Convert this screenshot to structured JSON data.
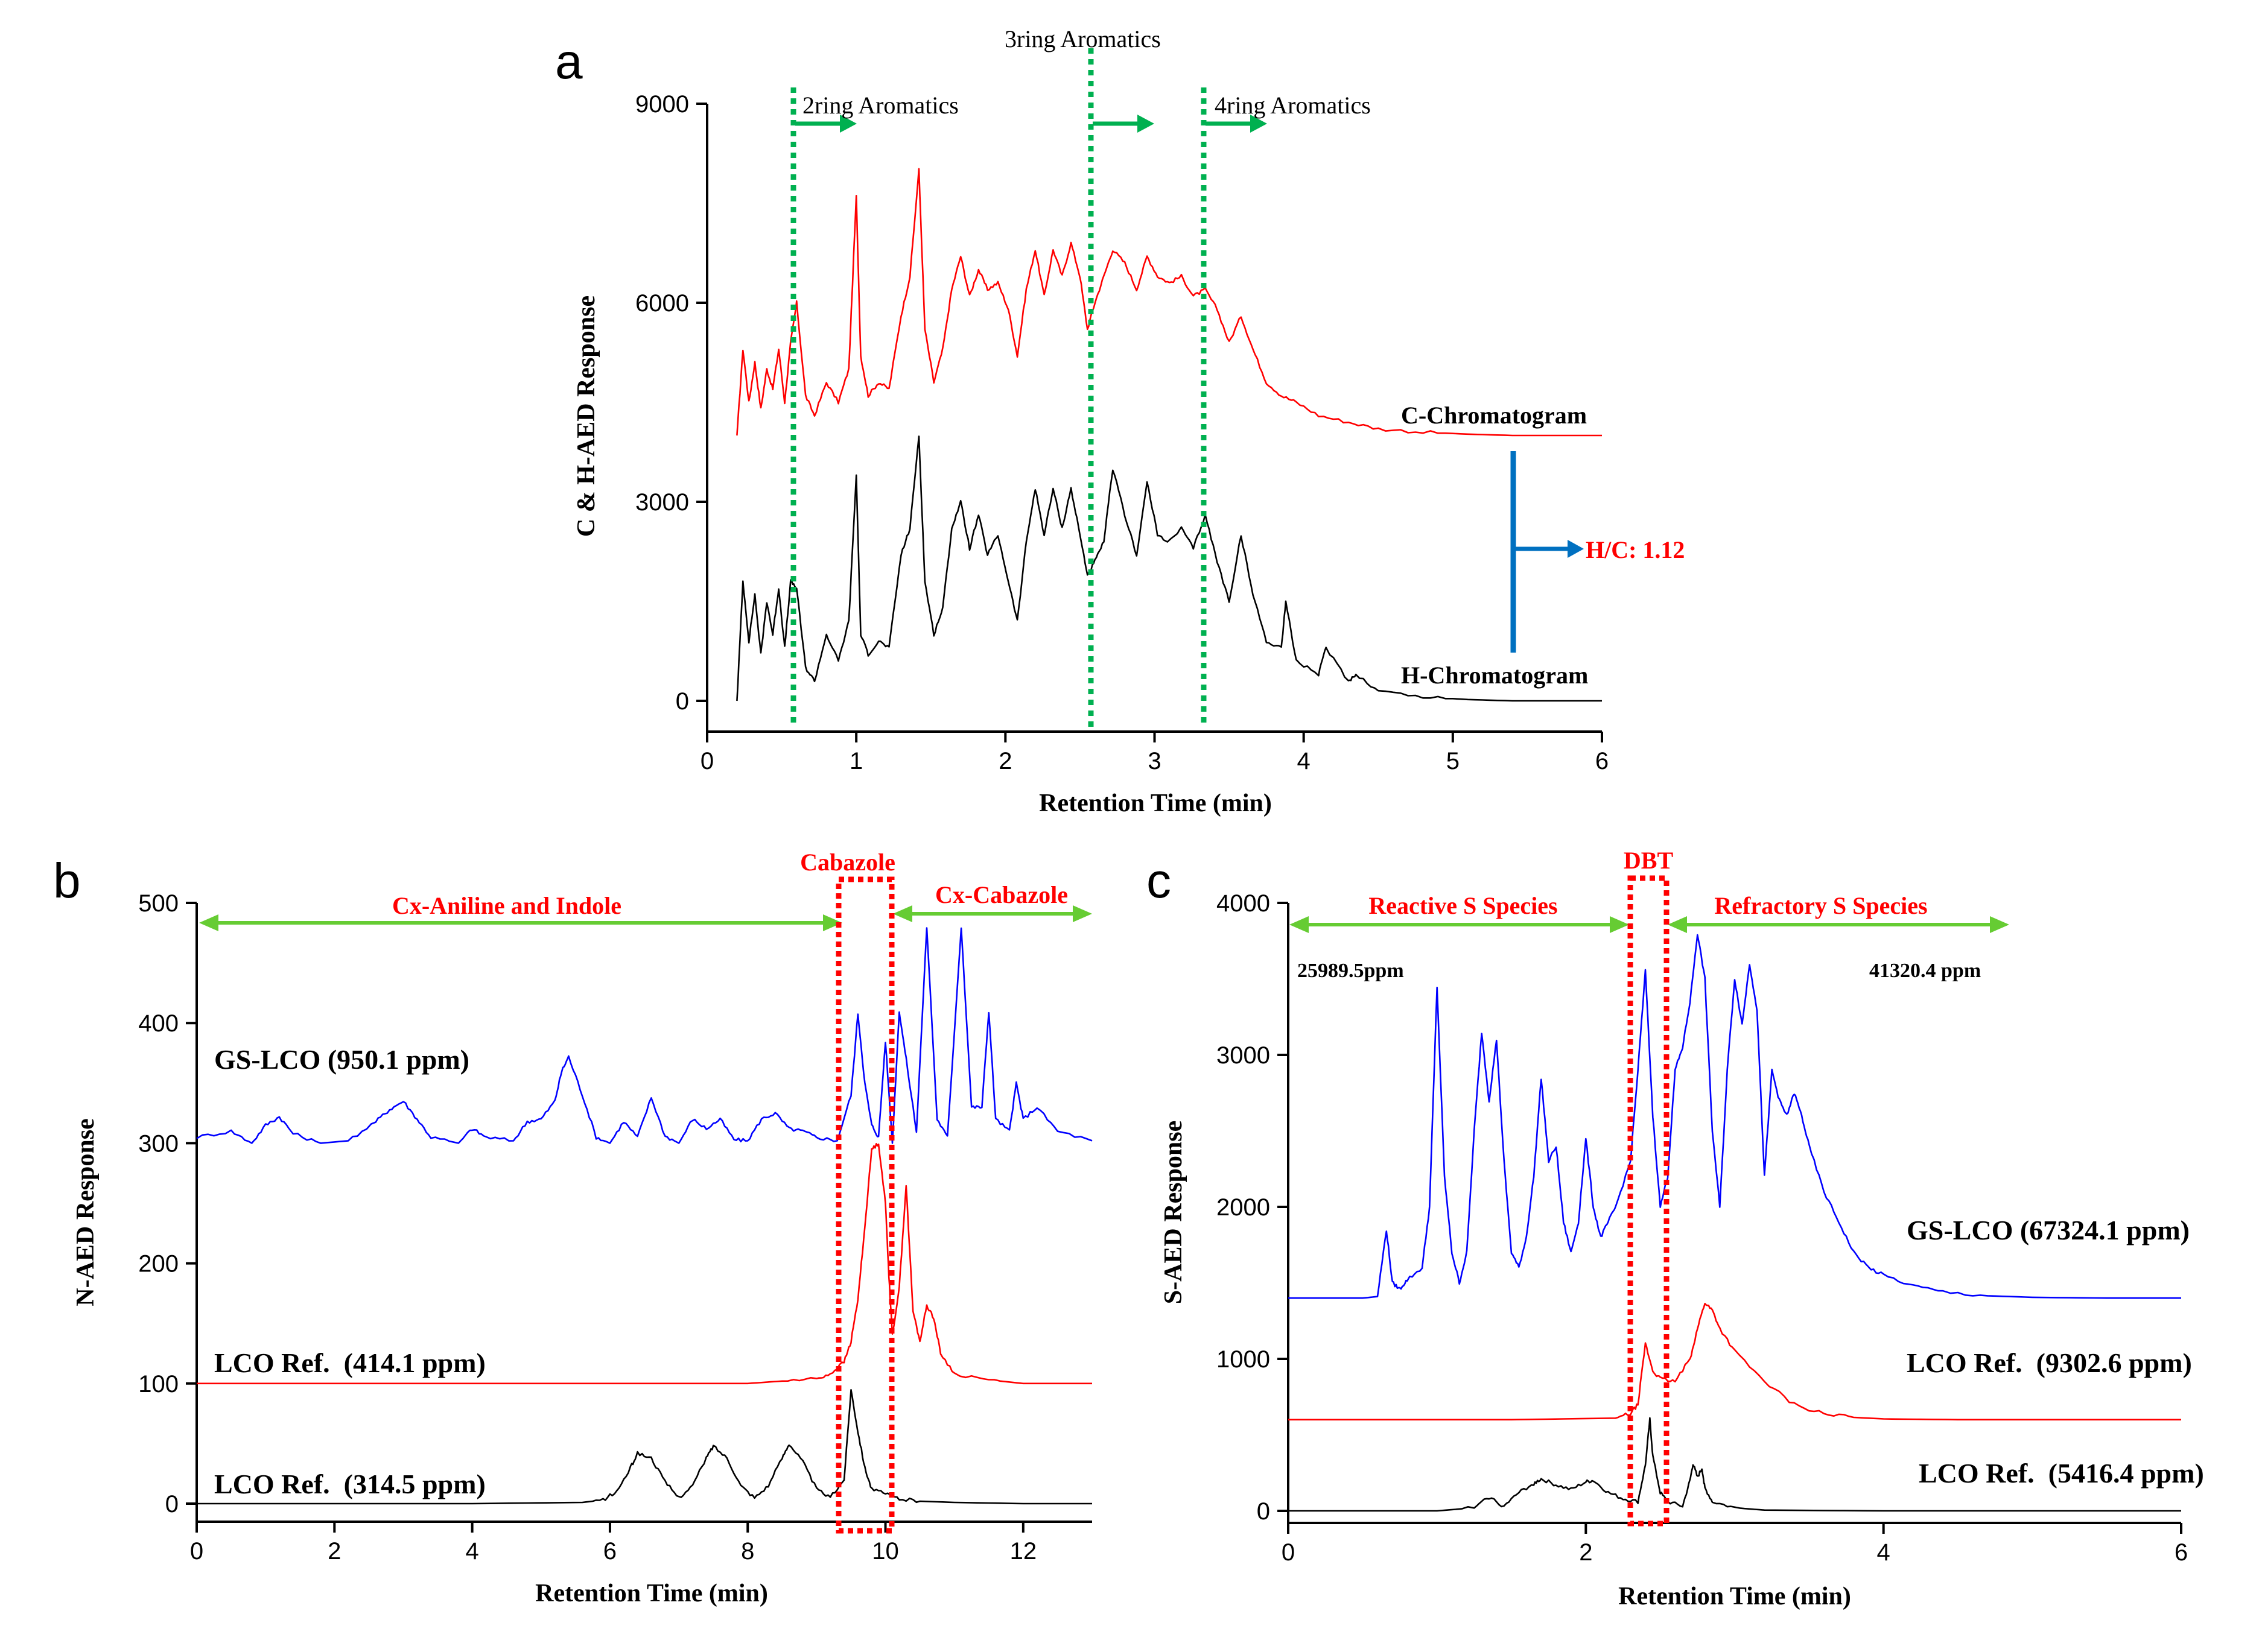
{
  "panels": {
    "a": {
      "letter": "a"
    },
    "b": {
      "letter": "b"
    },
    "c": {
      "letter": "c"
    }
  },
  "chart_data": [
    {
      "id": "a",
      "type": "line",
      "xlabel": "Retention Time (min)",
      "ylabel": "C & H-AED Response",
      "xlim": [
        0,
        6
      ],
      "ylim": [
        0,
        9000
      ],
      "xticks": [
        0,
        1,
        2,
        3,
        4,
        5,
        6
      ],
      "yticks": [
        0,
        3000,
        6000,
        9000
      ],
      "series": [
        {
          "name": "C-Chromatogram",
          "color": "#ff0000",
          "baseline": 4000,
          "x": [
            0.2,
            0.24,
            0.28,
            0.32,
            0.36,
            0.4,
            0.44,
            0.48,
            0.52,
            0.56,
            0.6,
            0.66,
            0.72,
            0.8,
            0.88,
            0.95,
            1.0,
            1.03,
            1.08,
            1.15,
            1.22,
            1.3,
            1.36,
            1.42,
            1.46,
            1.52,
            1.58,
            1.64,
            1.7,
            1.76,
            1.82,
            1.88,
            1.95,
            2.02,
            2.08,
            2.14,
            2.2,
            2.26,
            2.32,
            2.38,
            2.44,
            2.5,
            2.55,
            2.6,
            2.66,
            2.72,
            2.8,
            2.88,
            2.95,
            3.02,
            3.1,
            3.18,
            3.26,
            3.34,
            3.42,
            3.5,
            3.58,
            3.66,
            3.75,
            3.85,
            3.95,
            4.1,
            4.3,
            4.5,
            4.8,
            5.1,
            5.4,
            6.0
          ],
          "y": [
            4000,
            5300,
            4500,
            5100,
            4400,
            5000,
            4700,
            5300,
            4500,
            5400,
            6000,
            4600,
            4300,
            4800,
            4500,
            5000,
            7600,
            5200,
            4600,
            4800,
            4700,
            5800,
            6400,
            8000,
            5600,
            4800,
            5300,
            6200,
            6700,
            6100,
            6500,
            6200,
            6300,
            5900,
            5200,
            6200,
            6800,
            6100,
            6800,
            6400,
            6900,
            6400,
            5600,
            6000,
            6400,
            6800,
            6600,
            6200,
            6700,
            6400,
            6300,
            6400,
            6100,
            6200,
            5900,
            5400,
            5800,
            5300,
            4800,
            4600,
            4500,
            4300,
            4200,
            4100,
            4050,
            4020,
            4000,
            4000
          ]
        },
        {
          "name": "H-Chromatogram",
          "color": "#000000",
          "baseline": 0,
          "x": [
            0.2,
            0.24,
            0.28,
            0.32,
            0.36,
            0.4,
            0.44,
            0.48,
            0.52,
            0.56,
            0.6,
            0.66,
            0.72,
            0.8,
            0.88,
            0.95,
            1.0,
            1.03,
            1.08,
            1.15,
            1.22,
            1.3,
            1.36,
            1.42,
            1.46,
            1.52,
            1.58,
            1.64,
            1.7,
            1.76,
            1.82,
            1.88,
            1.95,
            2.02,
            2.08,
            2.14,
            2.2,
            2.26,
            2.32,
            2.38,
            2.44,
            2.5,
            2.55,
            2.6,
            2.66,
            2.72,
            2.8,
            2.88,
            2.95,
            3.02,
            3.1,
            3.18,
            3.26,
            3.34,
            3.42,
            3.5,
            3.58,
            3.66,
            3.75,
            3.85,
            3.88,
            3.95,
            4.1,
            4.15,
            4.3,
            4.35,
            4.5,
            4.8,
            5.1,
            5.4,
            6.0
          ],
          "y": [
            0,
            1800,
            900,
            1600,
            700,
            1500,
            1000,
            1700,
            800,
            1800,
            1700,
            500,
            300,
            1000,
            600,
            1200,
            3400,
            1000,
            700,
            900,
            800,
            2200,
            2600,
            4000,
            1800,
            1000,
            1400,
            2600,
            3000,
            2300,
            2800,
            2200,
            2500,
            1800,
            1200,
            2400,
            3200,
            2500,
            3200,
            2600,
            3200,
            2500,
            1900,
            2100,
            2400,
            3500,
            2800,
            2200,
            3300,
            2500,
            2400,
            2600,
            2300,
            2800,
            2100,
            1500,
            2500,
            1600,
            900,
            800,
            1500,
            600,
            400,
            800,
            300,
            400,
            150,
            60,
            20,
            0,
            0
          ]
        }
      ],
      "annotations": {
        "ring2": {
          "label": "2ring Aromatics",
          "x": 0.58
        },
        "ring3": {
          "label": "3ring Aromatics",
          "x": 2.58
        },
        "ring4": {
          "label": "4ring Aromatics",
          "x": 3.35
        },
        "c_label": "C-Chromatogram",
        "h_label": "H-Chromatogram",
        "ratio": "H/C: 1.12"
      }
    },
    {
      "id": "b",
      "type": "line",
      "xlabel": "Retention Time (min)",
      "ylabel": "N-AED Response",
      "xlim": [
        0,
        13
      ],
      "ylim": [
        0,
        500
      ],
      "xticks": [
        0,
        2,
        4,
        6,
        8,
        10,
        12
      ],
      "yticks": [
        0,
        100,
        200,
        300,
        400,
        500
      ],
      "series": [
        {
          "name": "GS-LCO (950.1 ppm)",
          "color": "#0000ff",
          "baseline": 300,
          "x": [
            0,
            0.5,
            0.8,
            1.0,
            1.2,
            1.4,
            1.8,
            2.2,
            2.6,
            2.8,
            3.0,
            3.2,
            3.4,
            3.8,
            4.0,
            4.2,
            4.6,
            4.8,
            5.0,
            5.2,
            5.3,
            5.4,
            5.6,
            5.8,
            6.0,
            6.2,
            6.4,
            6.6,
            6.8,
            7.0,
            7.2,
            7.4,
            7.6,
            7.8,
            8.0,
            8.2,
            8.4,
            8.6,
            8.8,
            9.0,
            9.3,
            9.5,
            9.6,
            9.7,
            9.8,
            9.9,
            10.0,
            10.1,
            10.2,
            10.3,
            10.45,
            10.6,
            10.75,
            10.9,
            11.1,
            11.25,
            11.4,
            11.5,
            11.6,
            11.8,
            11.9,
            12.0,
            12.2,
            12.5,
            13.0
          ],
          "y": [
            305,
            310,
            300,
            315,
            322,
            308,
            300,
            302,
            318,
            328,
            335,
            320,
            305,
            300,
            312,
            305,
            302,
            318,
            320,
            335,
            360,
            372,
            340,
            305,
            300,
            318,
            305,
            338,
            306,
            300,
            320,
            312,
            320,
            303,
            302,
            320,
            325,
            312,
            310,
            305,
            302,
            340,
            408,
            350,
            315,
            305,
            385,
            300,
            410,
            370,
            310,
            480,
            320,
            305,
            480,
            330,
            330,
            410,
            320,
            310,
            350,
            320,
            330,
            310,
            302
          ]
        },
        {
          "name": "LCO Ref.  (414.1 ppm)",
          "color": "#ff0000",
          "baseline": 100,
          "x": [
            0,
            2,
            4,
            6,
            8,
            8.5,
            9.0,
            9.2,
            9.4,
            9.5,
            9.6,
            9.7,
            9.8,
            9.9,
            10.0,
            10.05,
            10.1,
            10.2,
            10.3,
            10.4,
            10.5,
            10.6,
            10.7,
            10.8,
            11.0,
            11.5,
            12,
            13
          ],
          "y": [
            100,
            100,
            100,
            100,
            100,
            102,
            104,
            108,
            118,
            135,
            170,
            230,
            295,
            300,
            250,
            190,
            140,
            180,
            265,
            160,
            135,
            165,
            155,
            125,
            108,
            103,
            100,
            100
          ]
        },
        {
          "name": "LCO Ref.  (314.5 ppm)",
          "color": "#000000",
          "baseline": 0,
          "x": [
            0,
            2,
            4,
            5.6,
            5.9,
            6.1,
            6.3,
            6.4,
            6.6,
            6.8,
            7.0,
            7.2,
            7.4,
            7.5,
            7.7,
            7.9,
            8.1,
            8.3,
            8.5,
            8.6,
            8.8,
            9.0,
            9.2,
            9.4,
            9.5,
            9.6,
            9.7,
            9.8,
            10.0,
            10.2,
            10.5,
            11,
            12,
            13
          ],
          "y": [
            0,
            0,
            0,
            1,
            3,
            10,
            30,
            42,
            38,
            18,
            5,
            15,
            38,
            48,
            38,
            15,
            5,
            15,
            38,
            50,
            35,
            12,
            5,
            20,
            95,
            60,
            30,
            12,
            8,
            4,
            2,
            1,
            0,
            0
          ]
        }
      ],
      "annotations": {
        "left_region": {
          "label": "Cx-Aniline and Indole",
          "x0": 0,
          "x1": 9.4
        },
        "box": {
          "label": "Cabazole",
          "x0": 9.3,
          "x1": 10.1
        },
        "right_region": {
          "label": "Cx-Cabazole",
          "x0": 10.1,
          "x1": 13.0
        }
      }
    },
    {
      "id": "c",
      "type": "line",
      "xlabel": "Retention Time (min)",
      "ylabel": "S-AED Response",
      "xlim": [
        0,
        6
      ],
      "ylim": [
        0,
        4000
      ],
      "xticks": [
        0,
        2,
        4,
        6
      ],
      "yticks": [
        0,
        1000,
        2000,
        3000,
        4000
      ],
      "series": [
        {
          "name": "GS-LCO (67324.1 ppm)",
          "color": "#0000ff",
          "baseline": 1400,
          "x": [
            0,
            0.5,
            0.6,
            0.66,
            0.7,
            0.75,
            0.8,
            0.9,
            0.95,
            1.0,
            1.05,
            1.1,
            1.15,
            1.2,
            1.25,
            1.3,
            1.35,
            1.4,
            1.45,
            1.5,
            1.55,
            1.6,
            1.65,
            1.7,
            1.75,
            1.8,
            1.85,
            1.9,
            1.95,
            2.0,
            2.05,
            2.1,
            2.15,
            2.2,
            2.3,
            2.35,
            2.4,
            2.45,
            2.5,
            2.55,
            2.6,
            2.65,
            2.7,
            2.75,
            2.8,
            2.85,
            2.9,
            2.95,
            3.0,
            3.05,
            3.1,
            3.15,
            3.2,
            3.25,
            3.3,
            3.35,
            3.4,
            3.45,
            3.5,
            3.6,
            3.7,
            3.8,
            3.9,
            4.0,
            4.2,
            4.4,
            4.7,
            5.0,
            5.5,
            6.0
          ],
          "y": [
            1400,
            1400,
            1410,
            1850,
            1500,
            1460,
            1520,
            1600,
            2000,
            3450,
            2200,
            1700,
            1500,
            1700,
            2500,
            3150,
            2700,
            3100,
            2300,
            1700,
            1600,
            1800,
            2200,
            2850,
            2300,
            2400,
            1900,
            1700,
            1900,
            2450,
            2000,
            1800,
            1900,
            2000,
            2300,
            2900,
            3550,
            2600,
            2000,
            2200,
            2900,
            3050,
            3350,
            3800,
            3500,
            2500,
            2000,
            2900,
            3500,
            3200,
            3600,
            3300,
            2200,
            2900,
            2700,
            2600,
            2750,
            2600,
            2400,
            2100,
            1900,
            1700,
            1600,
            1550,
            1480,
            1440,
            1415,
            1405,
            1400,
            1400
          ]
        },
        {
          "name": "LCO Ref.  (9302.6 ppm)",
          "color": "#ff0000",
          "baseline": 600,
          "x": [
            0,
            1.5,
            2.2,
            2.3,
            2.35,
            2.4,
            2.45,
            2.5,
            2.6,
            2.7,
            2.75,
            2.8,
            2.85,
            2.9,
            3.0,
            3.2,
            3.4,
            3.6,
            3.8,
            4.0,
            4.5,
            5,
            6
          ],
          "y": [
            600,
            600,
            610,
            640,
            700,
            1100,
            920,
            870,
            850,
            1000,
            1200,
            1370,
            1320,
            1200,
            1050,
            850,
            700,
            640,
            615,
            605,
            600,
            600,
            600
          ]
        },
        {
          "name": "LCO Ref.  (5416.4 ppm)",
          "color": "#000000",
          "baseline": 0,
          "x": [
            0,
            1.0,
            1.25,
            1.35,
            1.45,
            1.55,
            1.65,
            1.7,
            1.8,
            1.9,
            2.0,
            2.05,
            2.15,
            2.25,
            2.35,
            2.4,
            2.43,
            2.45,
            2.5,
            2.55,
            2.65,
            2.7,
            2.72,
            2.75,
            2.78,
            2.8,
            2.85,
            3.0,
            3.2,
            4.0,
            6.0
          ],
          "y": [
            0,
            0,
            20,
            90,
            30,
            120,
            180,
            210,
            170,
            140,
            190,
            200,
            120,
            80,
            60,
            300,
            600,
            360,
            120,
            60,
            30,
            200,
            310,
            220,
            280,
            150,
            60,
            20,
            5,
            0,
            0
          ]
        }
      ],
      "annotations": {
        "left_region": {
          "label": "Reactive S Species",
          "x0": 0,
          "x1": 2.35
        },
        "box": {
          "label": "DBT",
          "x0": 2.3,
          "x1": 2.57
        },
        "right_region": {
          "label": "Refractory S Species",
          "x0": 2.57,
          "x1": 4.85
        },
        "left_value": "25989.5ppm",
        "right_value": "41320.4 ppm"
      }
    }
  ]
}
